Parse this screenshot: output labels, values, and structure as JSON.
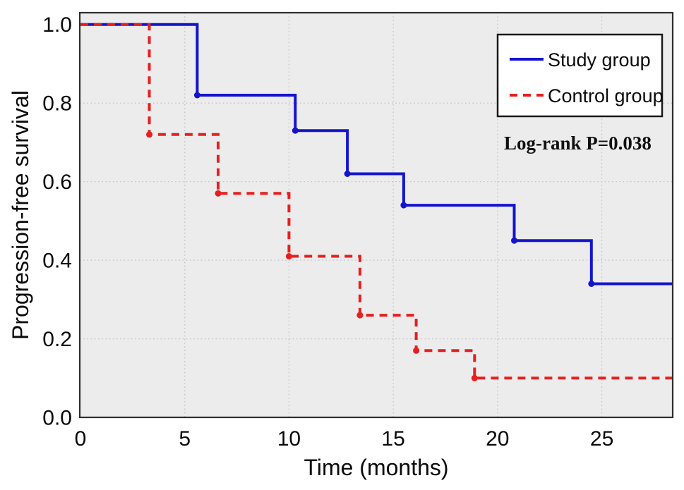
{
  "figure": {
    "plot_background": "#ececec",
    "outer_background": "#ffffff",
    "border_color": "#2e2e2e",
    "grid_color": "#c3c3c3"
  },
  "chart_data": {
    "type": "line",
    "subtype": "kaplan-meier-step",
    "title": "",
    "xlabel": "Time (months)",
    "ylabel": "Progression-free survival",
    "xlim": [
      0,
      28.4
    ],
    "ylim": [
      0,
      1.03
    ],
    "x_ticks": [
      0,
      5,
      10,
      15,
      20,
      25
    ],
    "y_ticks": [
      0.0,
      0.2,
      0.4,
      0.6,
      0.8,
      1.0
    ],
    "grid": true,
    "legend_position": "upper right",
    "annotation": {
      "text": "Log-rank P=0.038"
    },
    "series": [
      {
        "name": "Study group",
        "color": "#1414cd",
        "line_style": "solid",
        "start": [
          0,
          1.0
        ],
        "events": [
          [
            5.6,
            0.82
          ],
          [
            10.3,
            0.73
          ],
          [
            12.8,
            0.62
          ],
          [
            15.5,
            0.54
          ],
          [
            20.8,
            0.45
          ],
          [
            24.5,
            0.34
          ]
        ],
        "end_x": 28.4
      },
      {
        "name": "Control group",
        "color": "#e61f1f",
        "line_style": "dashed",
        "start": [
          0,
          1.0
        ],
        "events": [
          [
            3.3,
            0.72
          ],
          [
            6.6,
            0.57
          ],
          [
            10.0,
            0.41
          ],
          [
            13.4,
            0.26
          ],
          [
            16.1,
            0.17
          ],
          [
            18.9,
            0.1
          ]
        ],
        "end_x": 28.4
      }
    ]
  }
}
